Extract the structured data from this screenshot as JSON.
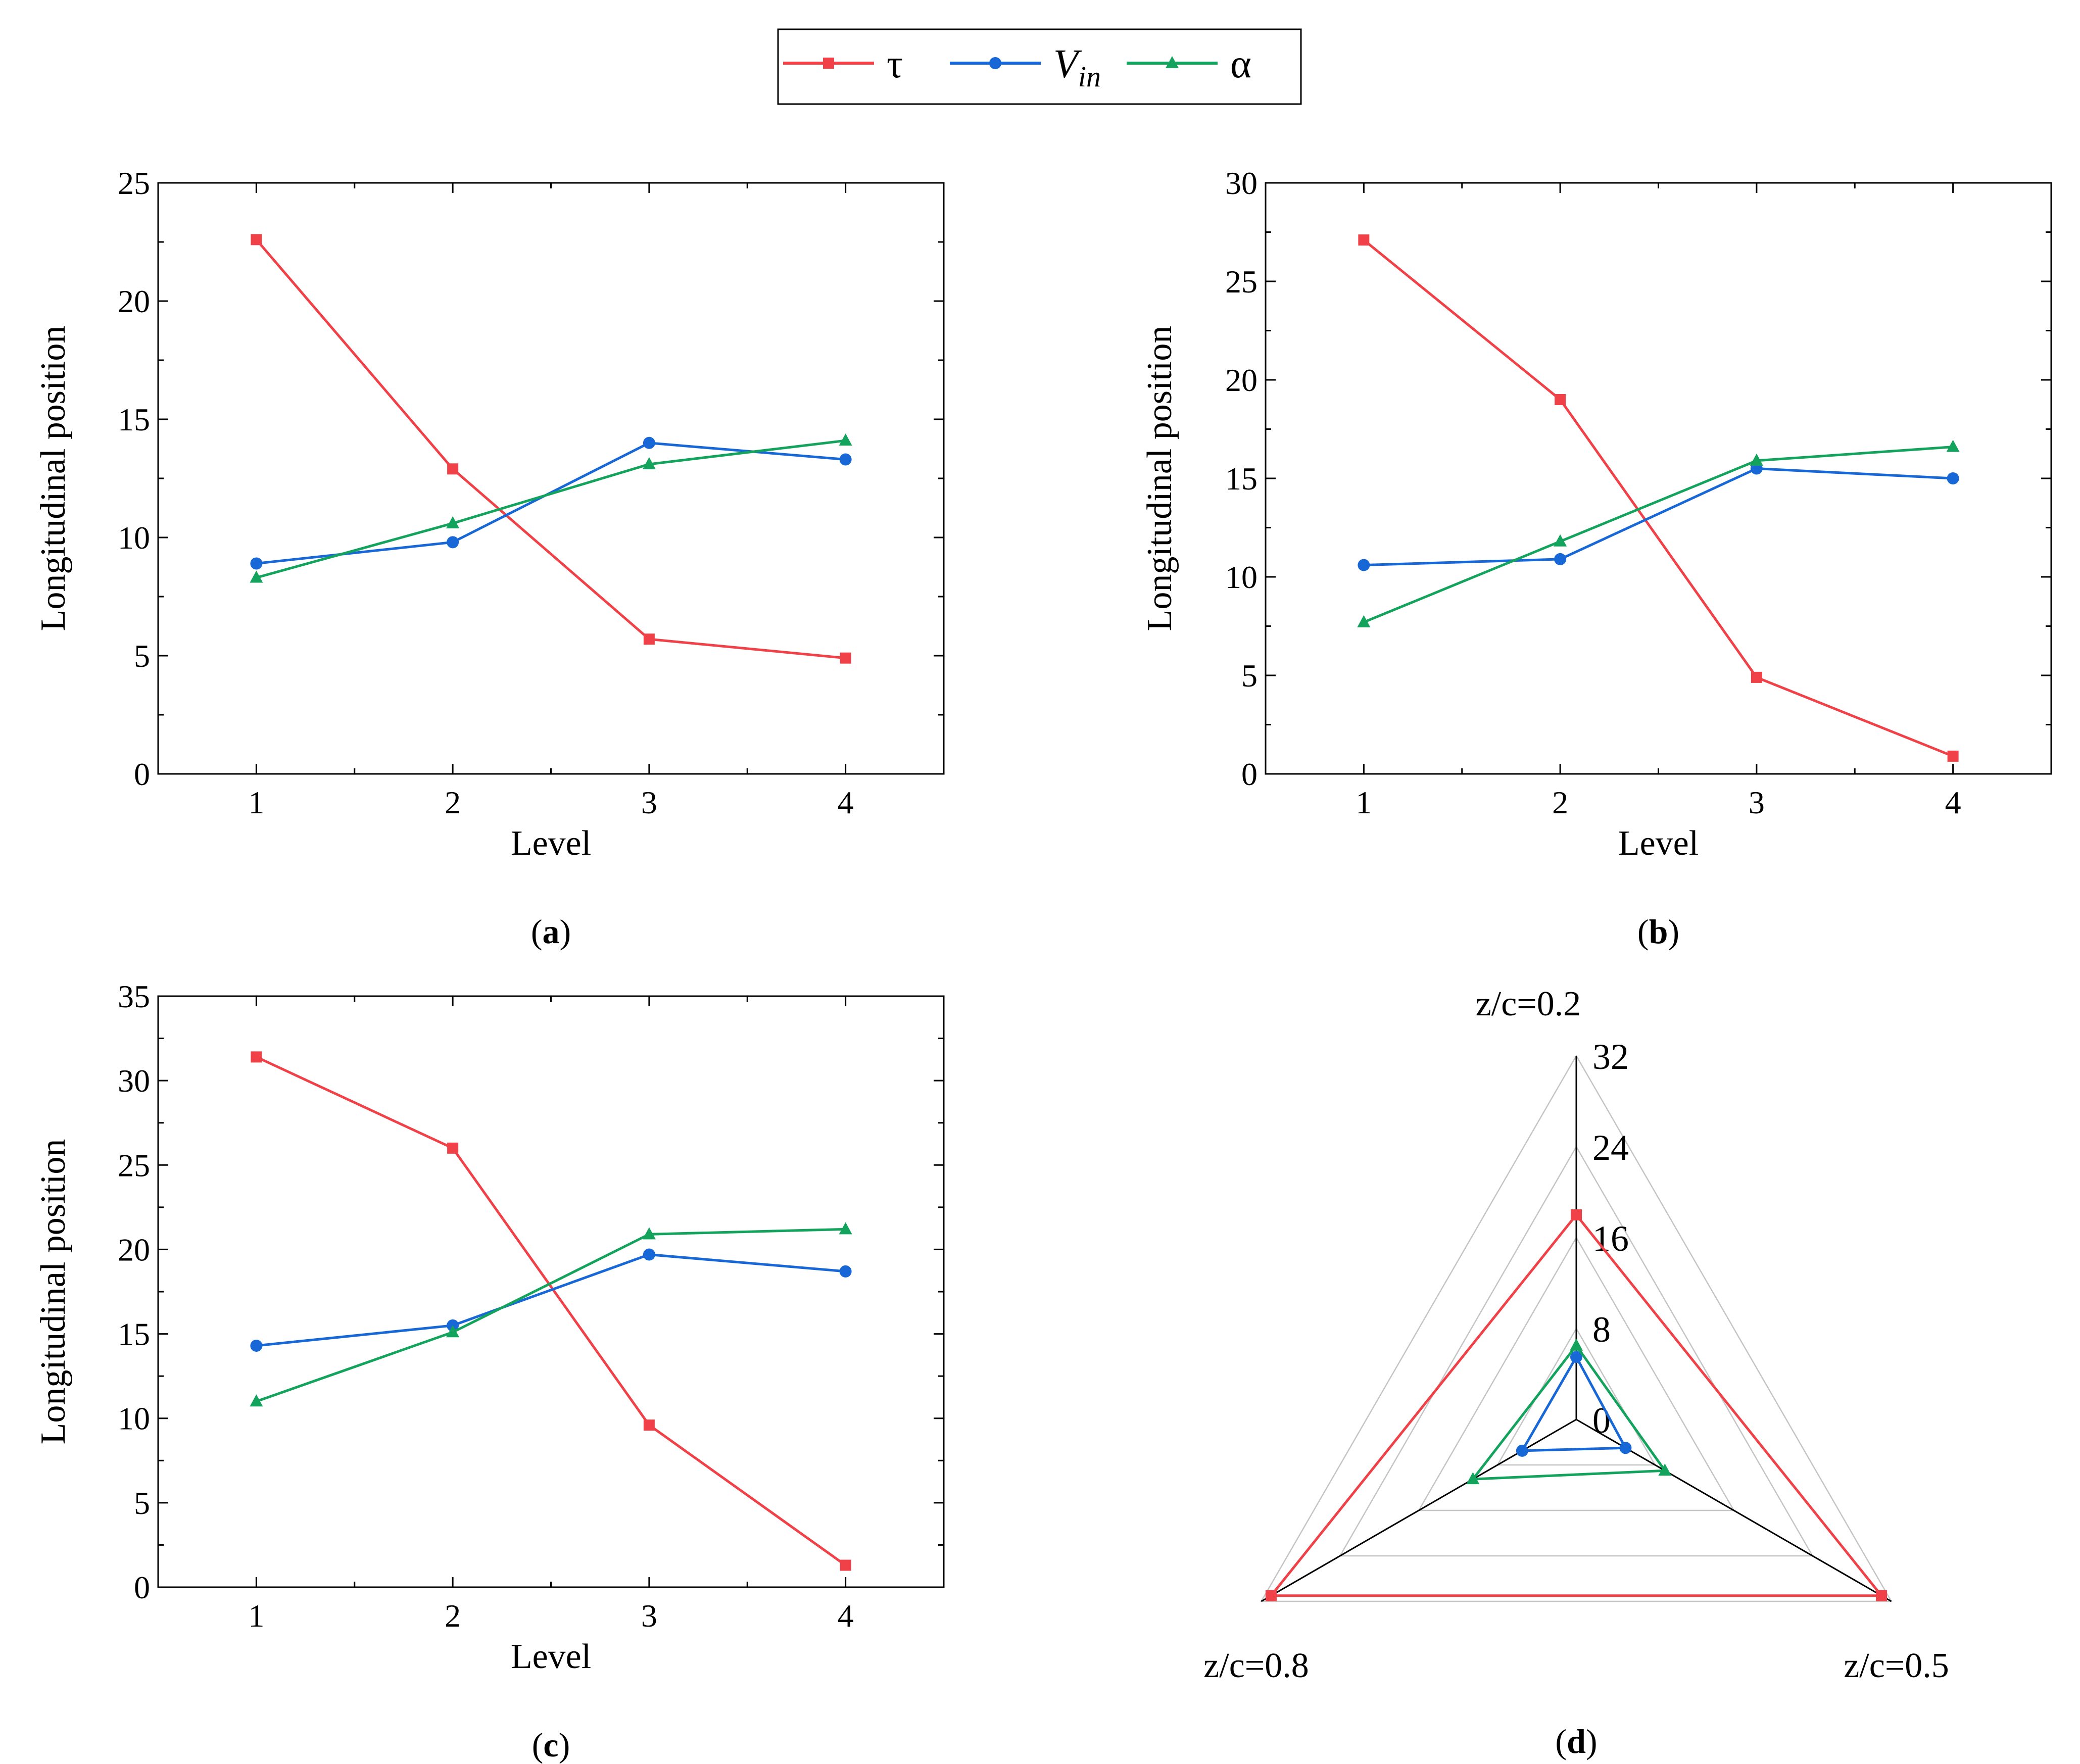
{
  "legend": {
    "placement": "top-center",
    "entries": [
      {
        "key": "tau",
        "label": "τ",
        "color": "#ef4147",
        "marker": "square"
      },
      {
        "key": "vin",
        "label": "V",
        "sub": "in",
        "color": "#1768d6",
        "marker": "circle"
      },
      {
        "key": "alpha",
        "label": "α",
        "color": "#13a35c",
        "marker": "triangle"
      }
    ]
  },
  "chart_data": [
    {
      "type": "line",
      "panel": "a",
      "caption": {
        "open": "(",
        "letter": "a",
        "close": ")"
      },
      "xlabel": "Level",
      "ylabel": "Longitudinal position",
      "x": [
        1,
        2,
        3,
        4
      ],
      "xlim": [
        0.5,
        4.5
      ],
      "ylim": [
        0,
        25
      ],
      "yticks": [
        0,
        5,
        10,
        15,
        20,
        25
      ],
      "series": [
        {
          "key": "tau",
          "values": [
            22.6,
            12.9,
            5.7,
            4.9
          ]
        },
        {
          "key": "vin",
          "values": [
            8.9,
            9.8,
            14.0,
            13.3
          ]
        },
        {
          "key": "alpha",
          "values": [
            8.3,
            10.6,
            13.1,
            14.1
          ]
        }
      ]
    },
    {
      "type": "line",
      "panel": "b",
      "caption": {
        "open": "(",
        "letter": "b",
        "close": ")"
      },
      "xlabel": "Level",
      "ylabel": "Longitudinal position",
      "x": [
        1,
        2,
        3,
        4
      ],
      "xlim": [
        0.5,
        4.5
      ],
      "ylim": [
        0,
        30
      ],
      "yticks": [
        0,
        5,
        10,
        15,
        20,
        25,
        30
      ],
      "series": [
        {
          "key": "tau",
          "values": [
            27.1,
            19.0,
            4.9,
            0.9
          ]
        },
        {
          "key": "vin",
          "values": [
            10.6,
            10.9,
            15.5,
            15.0
          ]
        },
        {
          "key": "alpha",
          "values": [
            7.7,
            11.8,
            15.9,
            16.6
          ]
        }
      ]
    },
    {
      "type": "line",
      "panel": "c",
      "caption": {
        "open": "(",
        "letter": "c",
        "close": ")"
      },
      "xlabel": "Level",
      "ylabel": "Longitudinal position",
      "x": [
        1,
        2,
        3,
        4
      ],
      "xlim": [
        0.5,
        4.5
      ],
      "ylim": [
        0,
        35
      ],
      "yticks": [
        0,
        5,
        10,
        15,
        20,
        25,
        30,
        35
      ],
      "series": [
        {
          "key": "tau",
          "values": [
            31.4,
            26.0,
            9.6,
            1.3
          ]
        },
        {
          "key": "vin",
          "values": [
            14.3,
            15.5,
            19.7,
            18.7
          ]
        },
        {
          "key": "alpha",
          "values": [
            11.0,
            15.1,
            20.9,
            21.2
          ]
        }
      ]
    },
    {
      "type": "radar",
      "panel": "d",
      "caption": {
        "open": "(",
        "letter": "d",
        "close": ")"
      },
      "axes": [
        "z/c=0.2",
        "z/c=0.5",
        "z/c=0.8"
      ],
      "rlim": [
        0,
        32
      ],
      "rticks": [
        0,
        8,
        16,
        24,
        32
      ],
      "grid": true,
      "series": [
        {
          "key": "tau",
          "values": [
            18.0,
            31.0,
            31.0
          ]
        },
        {
          "key": "vin",
          "values": [
            5.5,
            5.0,
            5.5
          ]
        },
        {
          "key": "alpha",
          "values": [
            6.5,
            9.0,
            10.5
          ]
        }
      ]
    }
  ]
}
